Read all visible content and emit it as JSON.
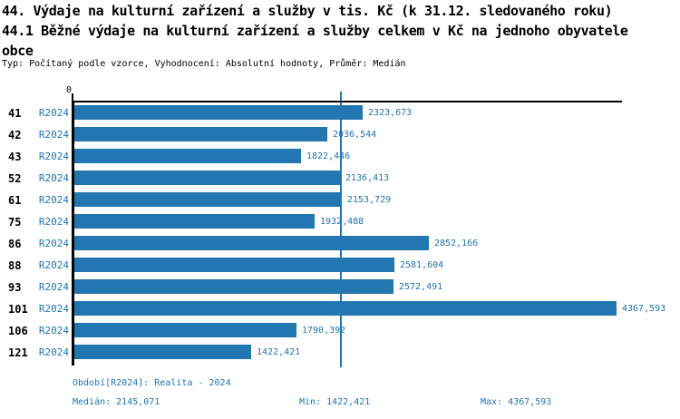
{
  "header": {
    "title_line1": "44. Výdaje na kulturní zařízení a služby v tis. Kč (k 31.12. sledovaného roku)",
    "title_line2": "44.1 Běžné výdaje na kulturní zařízení a služby celkem v Kč na jednoho obyvatele",
    "title_line3": "obce",
    "meta": "Typ: Počítaný podle vzorce, Vyhodnocení: Absolutní hodnoty, Průměr: Medián"
  },
  "colors": {
    "bar": "#2277b2",
    "blue_text": "#1f74b0",
    "axis": "#000000"
  },
  "chart_data": {
    "type": "bar",
    "orientation": "horizontal",
    "title": "Běžné výdaje na kulturní zařízení a služby celkem v Kč na jednoho obyvatele obce",
    "xlabel": "",
    "ylabel": "",
    "xlim": [
      0,
      4411
    ],
    "origin_tick_label": "0",
    "grid": false,
    "legend_position": "none",
    "period_label": "R2024",
    "categories": [
      "41",
      "42",
      "43",
      "52",
      "61",
      "75",
      "86",
      "88",
      "93",
      "101",
      "106",
      "121"
    ],
    "values": [
      2323.673,
      2036.544,
      1822.446,
      2136.413,
      2153.729,
      1932.488,
      2852.166,
      2581.604,
      2572.491,
      4367.593,
      1790.392,
      1422.421
    ],
    "value_labels": [
      "2323,673",
      "2036,544",
      "1822,446",
      "2136,413",
      "2153,729",
      "1932,488",
      "2852,166",
      "2581,604",
      "2572,491",
      "4367,593",
      "1790,392",
      "1422,421"
    ],
    "median": 2145.071,
    "min": 1422.421,
    "max": 4367.593
  },
  "footer": {
    "period": "Období[R2024]: Realita - 2024",
    "median": "Medián: 2145,071",
    "min": "Min: 1422,421",
    "max": "Max: 4367,593"
  }
}
